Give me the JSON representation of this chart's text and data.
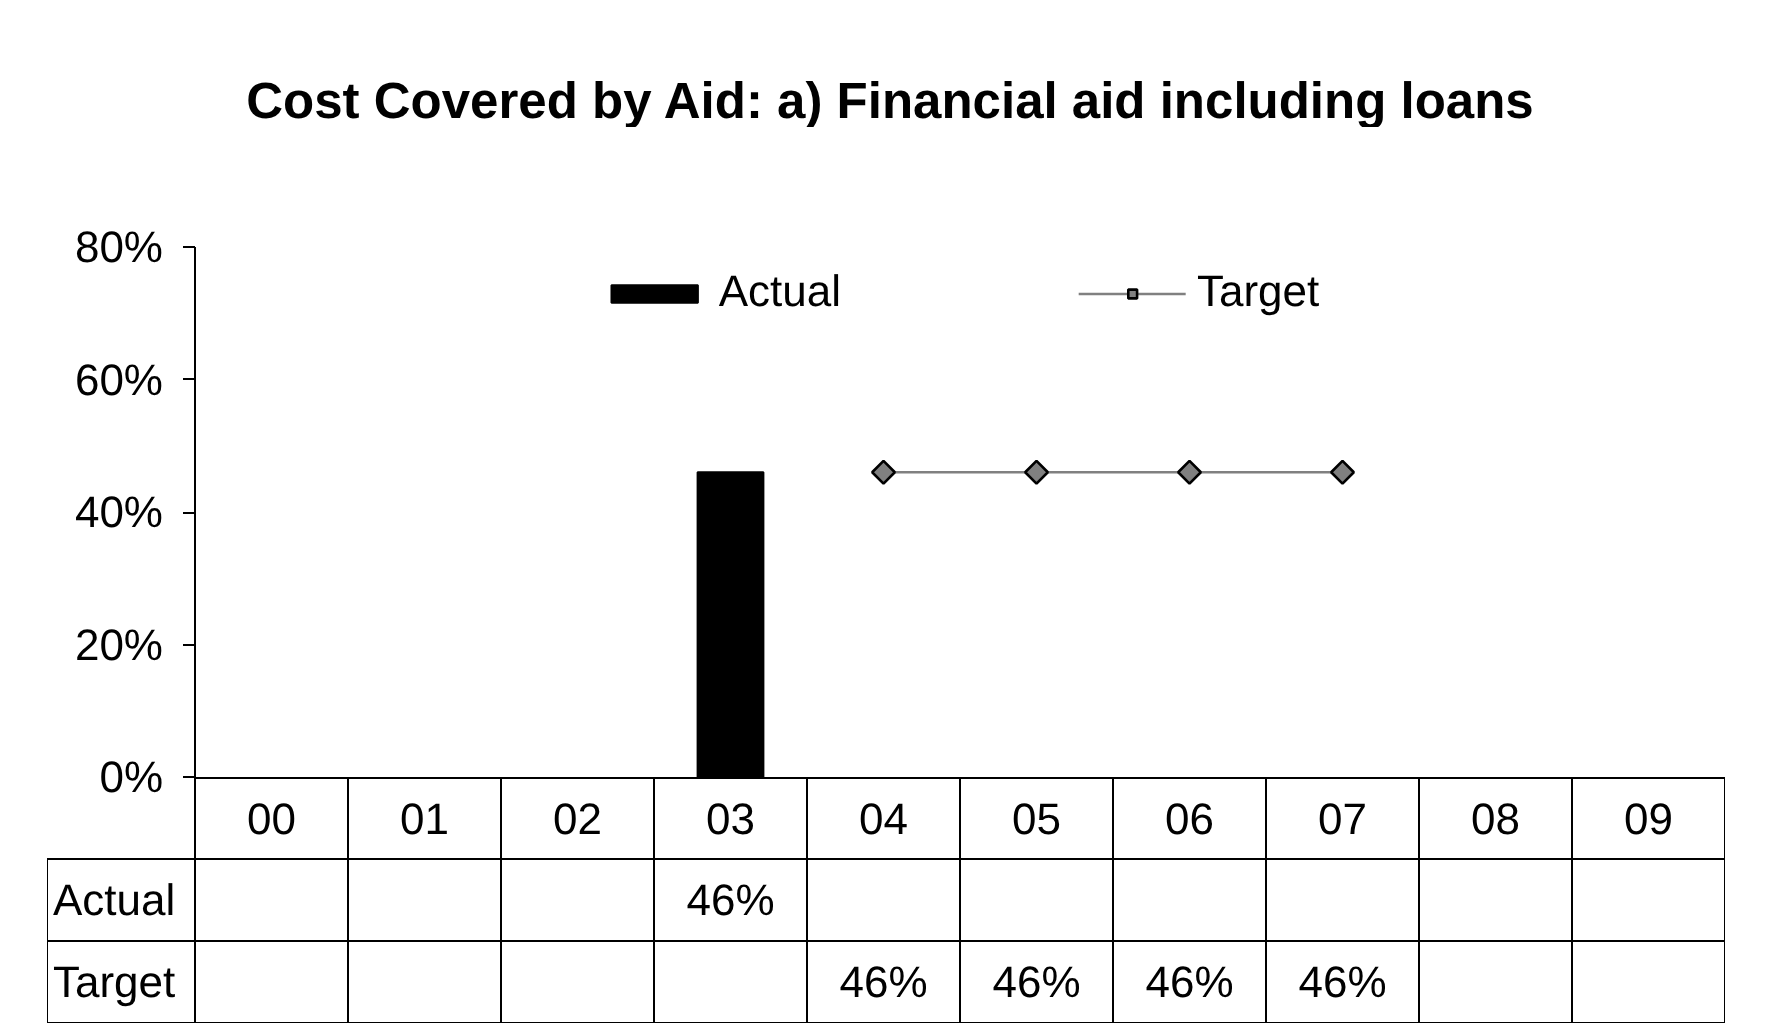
{
  "chart_data": {
    "type": "bar",
    "title": "Cost Covered by Aid: a) Financial aid including loans",
    "categories": [
      "00",
      "01",
      "02",
      "03",
      "04",
      "05",
      "06",
      "07",
      "08",
      "09"
    ],
    "series": [
      {
        "name": "Actual",
        "color": "#000000",
        "values": [
          null,
          null,
          null,
          46,
          null,
          null,
          null,
          null,
          null,
          null
        ],
        "value_labels": [
          null,
          null,
          null,
          "46%",
          null,
          null,
          null,
          null,
          null,
          null
        ]
      },
      {
        "name": "Target",
        "type": "line",
        "color": "#808080",
        "marker": "diamond",
        "values": [
          null,
          null,
          null,
          null,
          46,
          46,
          46,
          46,
          null,
          null
        ],
        "value_labels": [
          null,
          null,
          null,
          null,
          "46%",
          "46%",
          "46%",
          "46%",
          null,
          null
        ]
      }
    ],
    "ylim": [
      0,
      80
    ],
    "yticks": [
      {
        "value": 0,
        "label": "0%"
      },
      {
        "value": 20,
        "label": "20%"
      },
      {
        "value": 40,
        "label": "40%"
      },
      {
        "value": 60,
        "label": "60%"
      },
      {
        "value": 80,
        "label": "80%"
      }
    ],
    "legend": "top"
  }
}
